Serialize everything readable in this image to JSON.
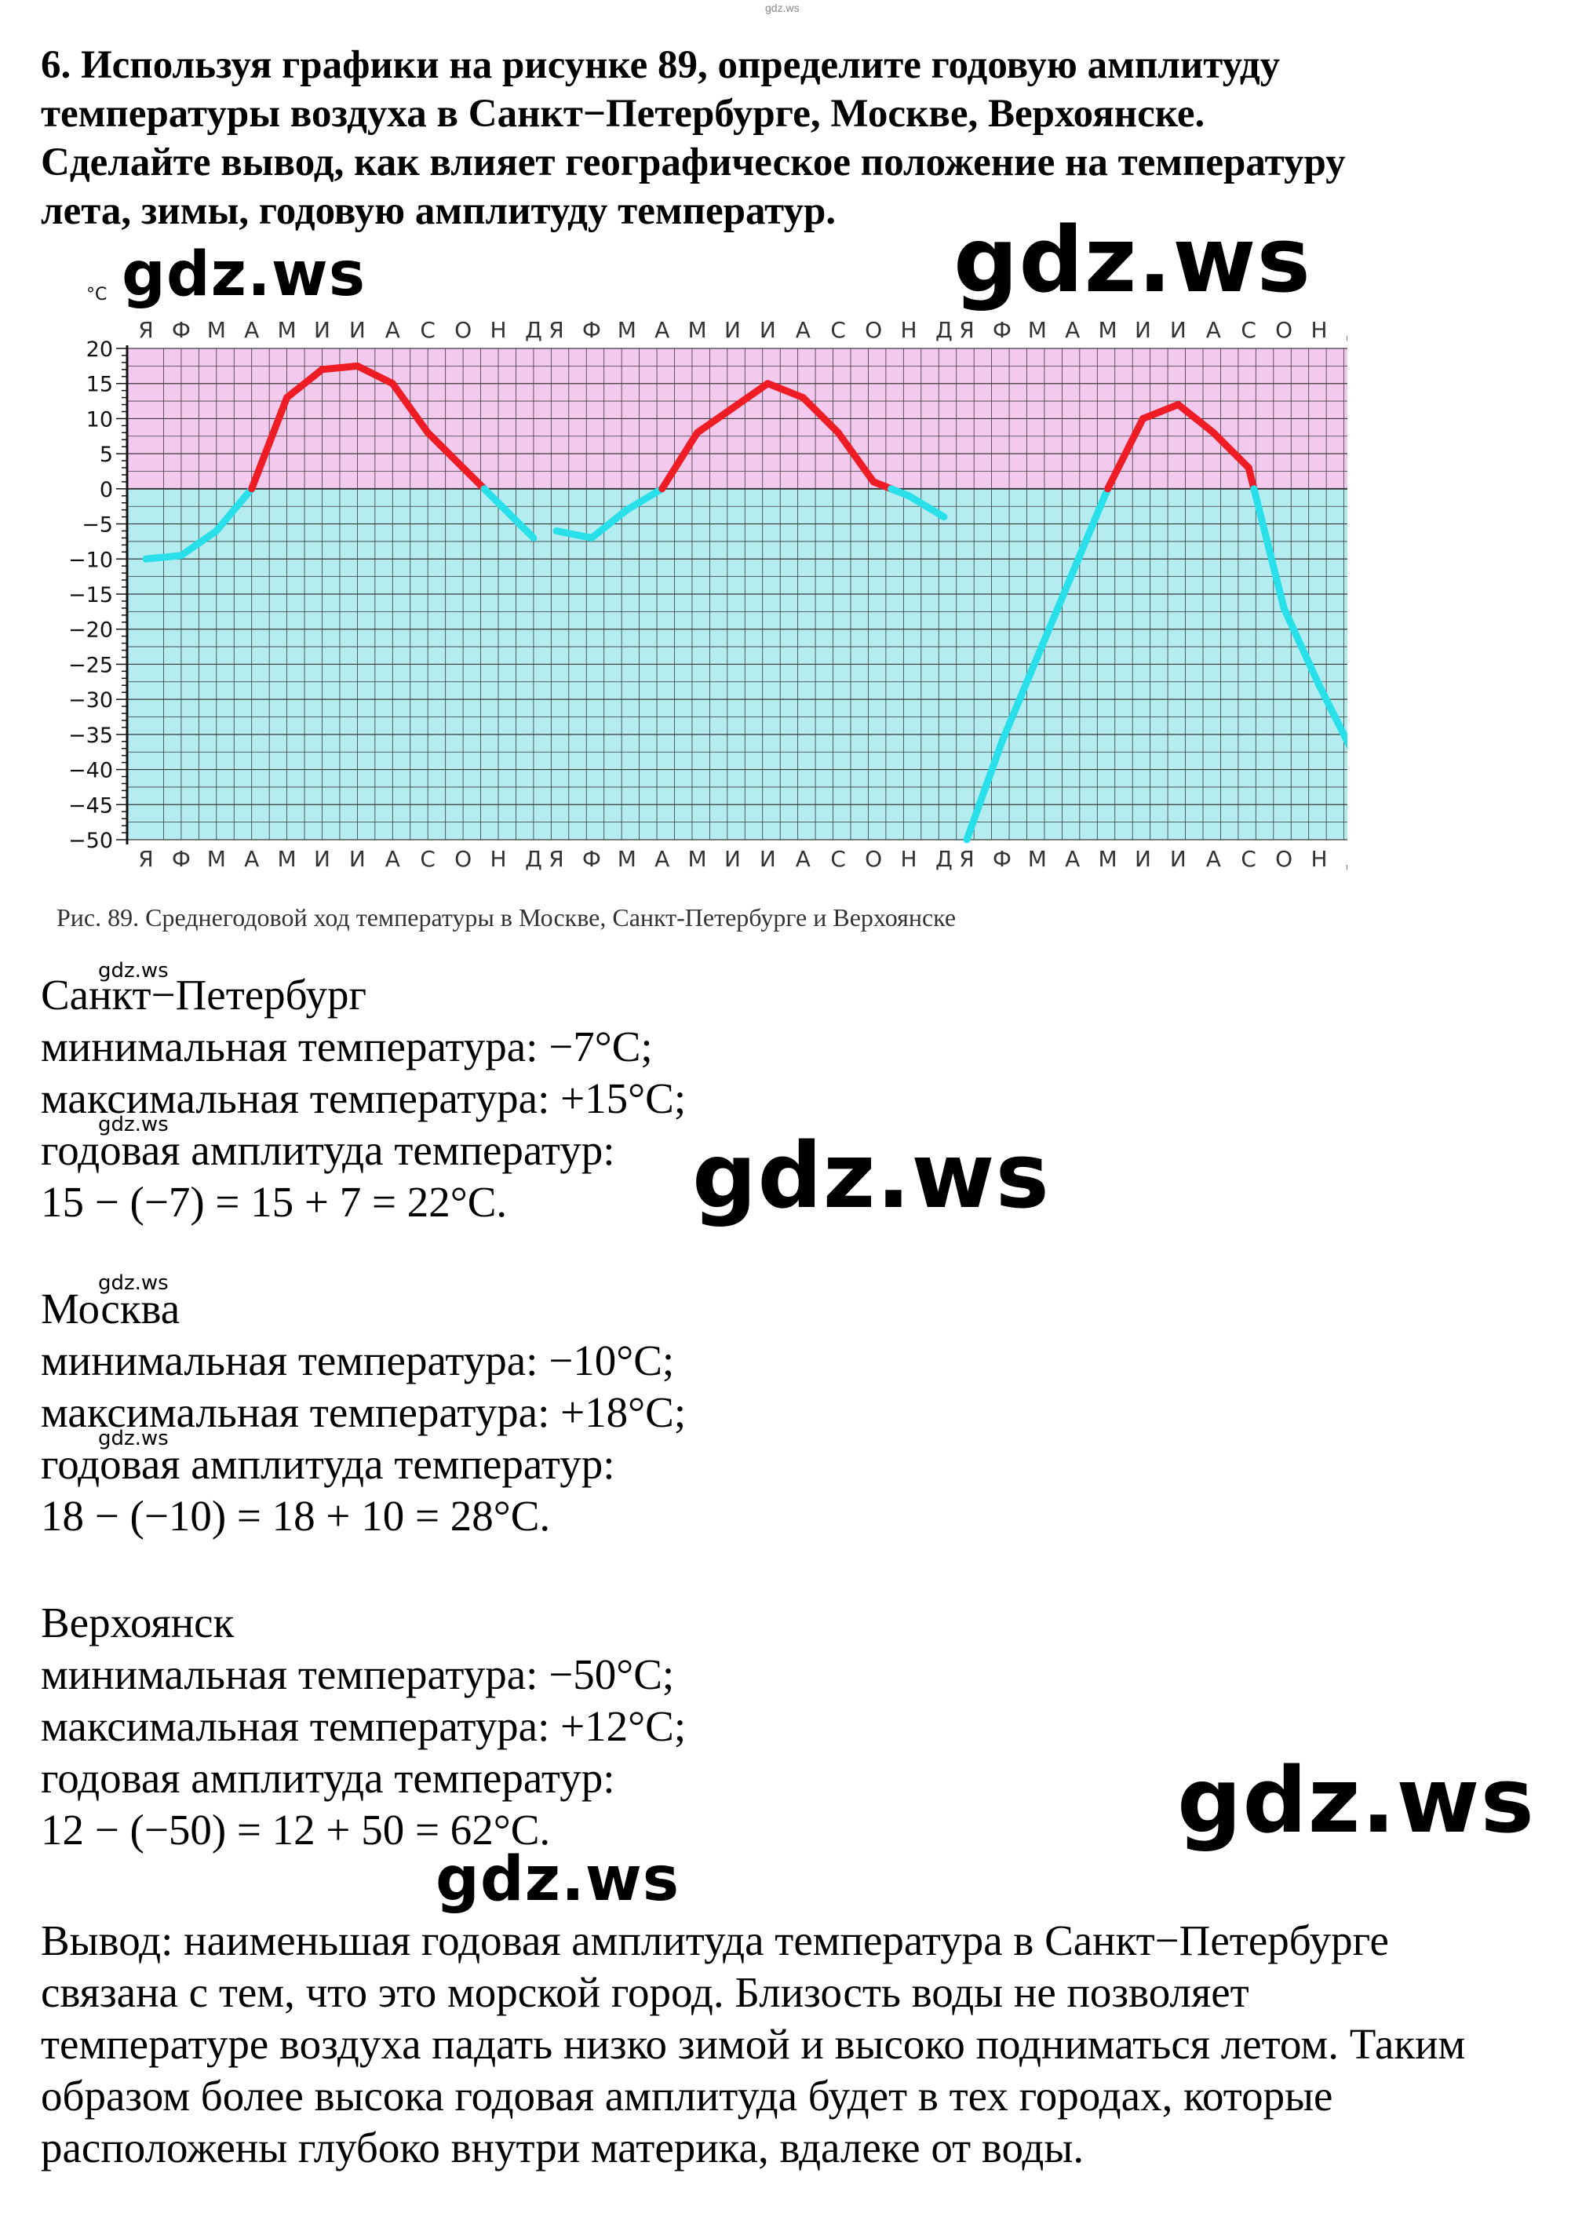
{
  "top_watermark": "gdz.ws",
  "question": {
    "lines": [
      "6. Используя графики на рисунке 89, определите годовую амплитуду",
      "температуры воздуха в Санкт−Петербурге, Москве, Верхоянске.",
      "Сделайте вывод, как влияет географическое положение на температуру",
      "лета, зимы, годовую амплитуду температур."
    ]
  },
  "watermarks": {
    "big": "gdz.ws",
    "small": "gdz.ws"
  },
  "chart_data": {
    "type": "line",
    "unit_label": "°С",
    "months": [
      "Я",
      "Ф",
      "М",
      "А",
      "М",
      "И",
      "И",
      "А",
      "С",
      "О",
      "Н",
      "Д"
    ],
    "y_ticks": [
      20,
      15,
      10,
      5,
      0,
      -5,
      -10,
      -15,
      -20,
      -25,
      -30,
      -35,
      -40,
      -45,
      -50
    ],
    "ylim": [
      -50,
      20
    ],
    "colors": {
      "warm_bg": "#f4c9ee",
      "cold_bg": "#b4ecef",
      "positive_line": "#ee1c24",
      "negative_line": "#29e0ea",
      "grid": "#3a3a3a"
    },
    "series": [
      {
        "values": [
          -10,
          -9.5,
          -6,
          0,
          13,
          17,
          17.5,
          15,
          8,
          3,
          -2,
          -7
        ]
      },
      {
        "values": [
          -6,
          -7,
          -3,
          0,
          8,
          11.5,
          15,
          13,
          8,
          1,
          -1,
          -4
        ]
      },
      {
        "values": [
          -50,
          -36,
          -24,
          -12,
          0,
          10,
          12,
          8,
          3,
          -17,
          -28,
          -38
        ]
      }
    ],
    "caption": "Рис. 89. Среднегодовой ход температуры в Москве, Санкт-Петербурге и Верхоянске"
  },
  "answers": [
    {
      "city": "Санкт−Петербург",
      "min": "минимальная температура: −7°С;",
      "max": "максимальная температура: +15°С;",
      "amp_label": "годовая амплитуда температур:",
      "calc": "15 − (−7) = 15 + 7 = 22°С."
    },
    {
      "city": "Москва",
      "min": "минимальная температура: −10°С;",
      "max": "максимальная температура: +18°С;",
      "amp_label": "годовая амплитуда температур:",
      "calc": "18 − (−10) = 18 + 10 = 28°С."
    },
    {
      "city": "Верхоянск",
      "min": "минимальная температура: −50°С;",
      "max": "максимальная температура: +12°С;",
      "amp_label": "годовая амплитуда температур:",
      "calc": "12 − (−50) = 12 + 50 = 62°С."
    }
  ],
  "conclusion": [
    "Вывод: наименьшая годовая амплитуда температура в Санкт−Петербурге",
    "связана с тем, что это морской город. Близость воды не позволяет",
    "температуре воздуха падать низко зимой и высоко подниматься летом. Таким",
    "образом более высока годовая амплитуда будет в тех городах, которые",
    "расположены глубоко внутри материка, вдалеке от воды."
  ]
}
